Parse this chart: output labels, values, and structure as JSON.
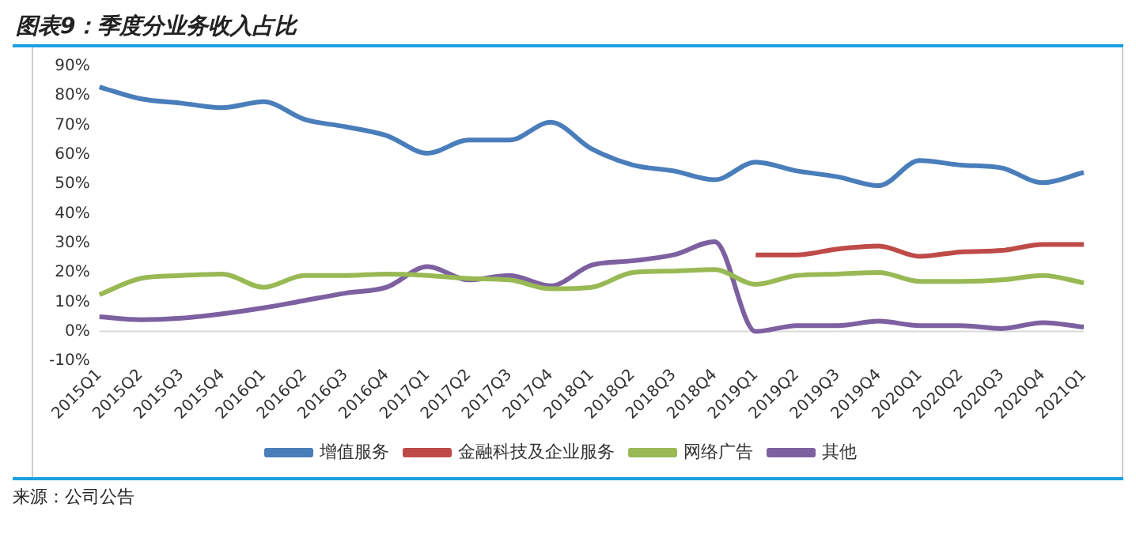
{
  "chart_data": {
    "type": "line",
    "title": "图表9：季度分业务收入占比",
    "annotations": [
      "来源：公司公告"
    ],
    "categories": [
      "2015Q1",
      "2015Q2",
      "2015Q3",
      "2015Q4",
      "2016Q1",
      "2016Q2",
      "2016Q3",
      "2016Q4",
      "2017Q1",
      "2017Q2",
      "2017Q3",
      "2017Q4",
      "2018Q1",
      "2018Q2",
      "2018Q3",
      "2018Q4",
      "2019Q1",
      "2019Q2",
      "2019Q3",
      "2019Q4",
      "2020Q1",
      "2020Q2",
      "2020Q3",
      "2020Q4",
      "2021Q1"
    ],
    "series": [
      {
        "name": "增值服务",
        "color": "#4a7ebb",
        "values": [
          83,
          79,
          77.5,
          76,
          78,
          72,
          69.5,
          66.5,
          60.5,
          65,
          65,
          71,
          62,
          56.5,
          54.5,
          51.5,
          57.5,
          54.5,
          52.5,
          49.5,
          58,
          56.5,
          55.5,
          50.5,
          54
        ]
      },
      {
        "name": "金融科技及企业服务",
        "color": "#be4b48",
        "values": [
          null,
          null,
          null,
          null,
          null,
          null,
          null,
          null,
          null,
          null,
          null,
          null,
          null,
          null,
          null,
          null,
          26,
          26,
          28,
          29,
          25.5,
          27,
          27.5,
          29.5,
          29.5
        ]
      },
      {
        "name": "网络广告",
        "color": "#98b954",
        "values": [
          12.5,
          18,
          19,
          19.5,
          15,
          19,
          19,
          19.5,
          19,
          18,
          17.5,
          14.5,
          15,
          20,
          20.5,
          21,
          16,
          19,
          19.5,
          20,
          17,
          17,
          17.5,
          19,
          16.5
        ]
      },
      {
        "name": "其他",
        "color": "#7d60a0",
        "values": [
          5,
          4,
          4.5,
          6,
          8,
          10.5,
          13,
          15,
          22,
          17.5,
          19,
          15.5,
          22.5,
          24,
          26,
          30.5,
          0,
          2,
          2,
          3.5,
          2,
          2,
          1,
          3,
          1.5
        ]
      }
    ],
    "ylim": [
      -10,
      90
    ],
    "yticks": [
      {
        "value": -10,
        "label": "-10%"
      },
      {
        "value": 0,
        "label": "0%"
      },
      {
        "value": 10,
        "label": "10%"
      },
      {
        "value": 20,
        "label": "20%"
      },
      {
        "value": 30,
        "label": "30%"
      },
      {
        "value": 40,
        "label": "40%"
      },
      {
        "value": 50,
        "label": "50%"
      },
      {
        "value": 60,
        "label": "60%"
      },
      {
        "value": 70,
        "label": "70%"
      },
      {
        "value": 80,
        "label": "80%"
      },
      {
        "value": 90,
        "label": "90%"
      }
    ],
    "grid": false,
    "legend": "bottom",
    "marker": "none",
    "line_style": "solid"
  }
}
